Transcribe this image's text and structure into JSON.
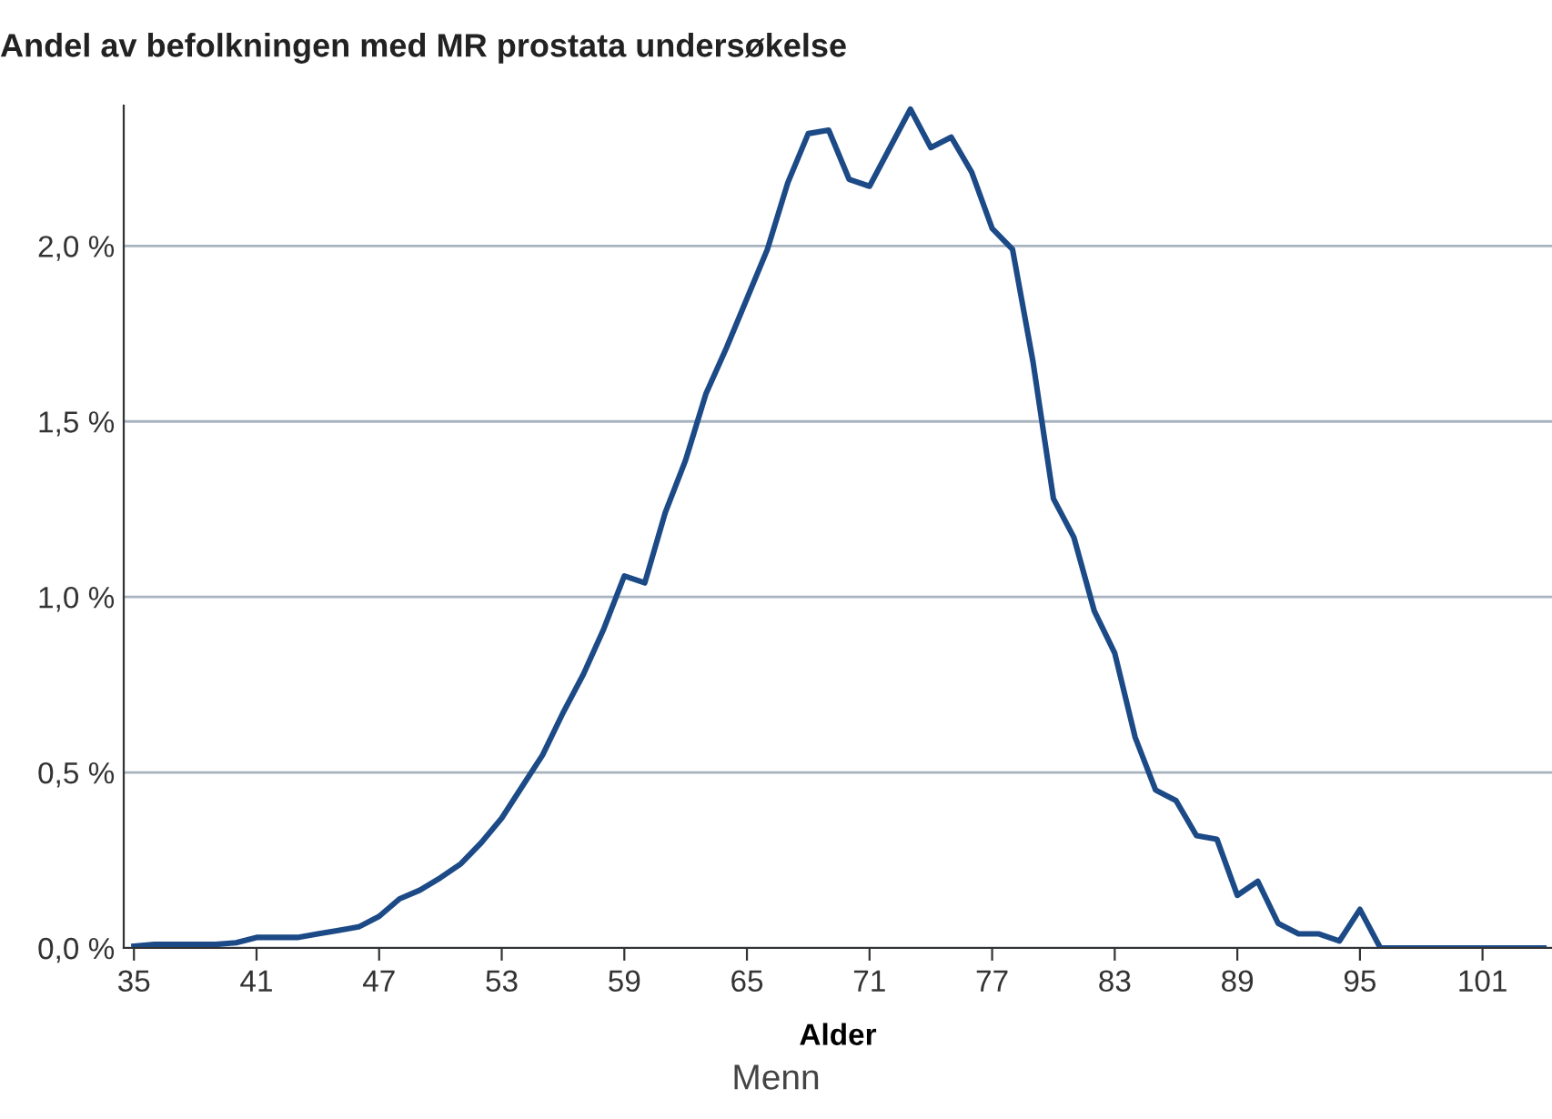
{
  "chart_data": {
    "type": "line",
    "title": "Andel av befolkningen med MR prostata undersøkelse",
    "xlabel": "Alder",
    "annotations": [
      "Menn"
    ],
    "x": [
      35,
      36,
      37,
      38,
      39,
      40,
      41,
      42,
      43,
      44,
      45,
      46,
      47,
      48,
      49,
      50,
      51,
      52,
      53,
      54,
      55,
      56,
      57,
      58,
      59,
      60,
      61,
      62,
      63,
      64,
      65,
      66,
      67,
      68,
      69,
      70,
      71,
      72,
      73,
      74,
      75,
      76,
      77,
      78,
      79,
      80,
      81,
      82,
      83,
      84,
      85,
      86,
      87,
      88,
      89,
      90,
      91,
      92,
      93,
      94,
      95,
      96,
      97,
      98,
      99,
      100,
      101,
      102,
      103,
      104
    ],
    "series": [
      {
        "color": "#1c4a87",
        "values": [
          0.005,
          0.01,
          0.01,
          0.01,
          0.01,
          0.015,
          0.03,
          0.03,
          0.03,
          0.04,
          0.05,
          0.06,
          0.09,
          0.14,
          0.165,
          0.2,
          0.24,
          0.3,
          0.37,
          0.46,
          0.55,
          0.67,
          0.78,
          0.91,
          1.06,
          1.04,
          1.24,
          1.39,
          1.58,
          1.71,
          1.85,
          1.99,
          2.18,
          2.32,
          2.33,
          2.19,
          2.17,
          2.28,
          2.39,
          2.28,
          2.31,
          2.21,
          2.05,
          1.99,
          1.67,
          1.28,
          1.17,
          0.96,
          0.84,
          0.6,
          0.45,
          0.42,
          0.32,
          0.31,
          0.15,
          0.19,
          0.07,
          0.04,
          0.04,
          0.02,
          0.11,
          0,
          0,
          0,
          0,
          0,
          0,
          0,
          0,
          0
        ]
      }
    ],
    "xlim": [
      34.5,
      104.4
    ],
    "xticks": [
      35,
      41,
      47,
      53,
      59,
      65,
      71,
      77,
      83,
      89,
      95,
      101
    ],
    "ylim": [
      0,
      2.4
    ],
    "yticks": [
      {
        "value": 0,
        "label": "0,0 %"
      },
      {
        "value": 0.5,
        "label": "0,5 %"
      },
      {
        "value": 1.0,
        "label": "1,0 %"
      },
      {
        "value": 1.5,
        "label": "1,5 %"
      },
      {
        "value": 2.0,
        "label": "2,0 %"
      }
    ],
    "grid": "y",
    "marker": "none",
    "line_style": "solid"
  }
}
